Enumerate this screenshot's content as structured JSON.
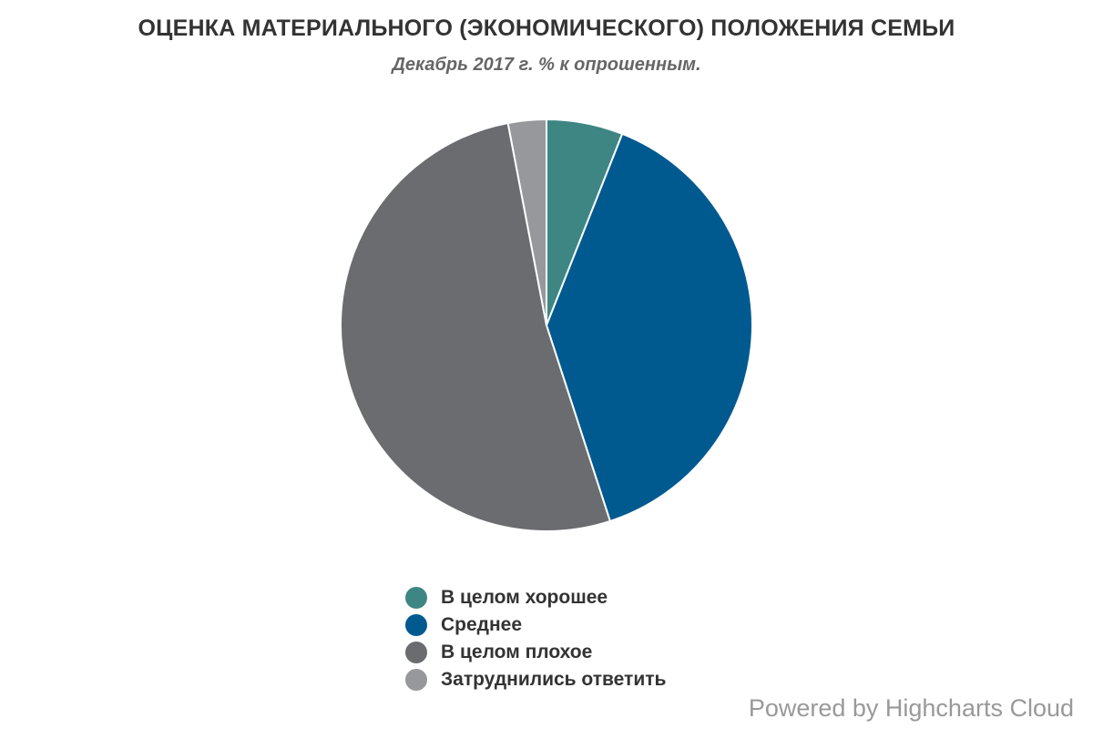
{
  "chart_data": {
    "type": "pie",
    "title": "ОЦЕНКА МАТЕРИАЛЬНОГО (ЭКОНОМИЧЕСКОГО) ПОЛОЖЕНИЯ СЕМЬИ",
    "subtitle": "Декабрь 2017 г. % к опрошенным.",
    "categories": [
      "В целом хорошее",
      "Среднее",
      "В целом плохое",
      "Затруднились ответить"
    ],
    "values": [
      6,
      39,
      52,
      3
    ],
    "colors": [
      "#3d8683",
      "#005a8f",
      "#6b6c70",
      "#97989c"
    ],
    "legend_position": "bottom-center",
    "start_angle_deg": 0,
    "direction": "clockwise"
  },
  "credits": {
    "text": "Powered by Highcharts Cloud"
  }
}
